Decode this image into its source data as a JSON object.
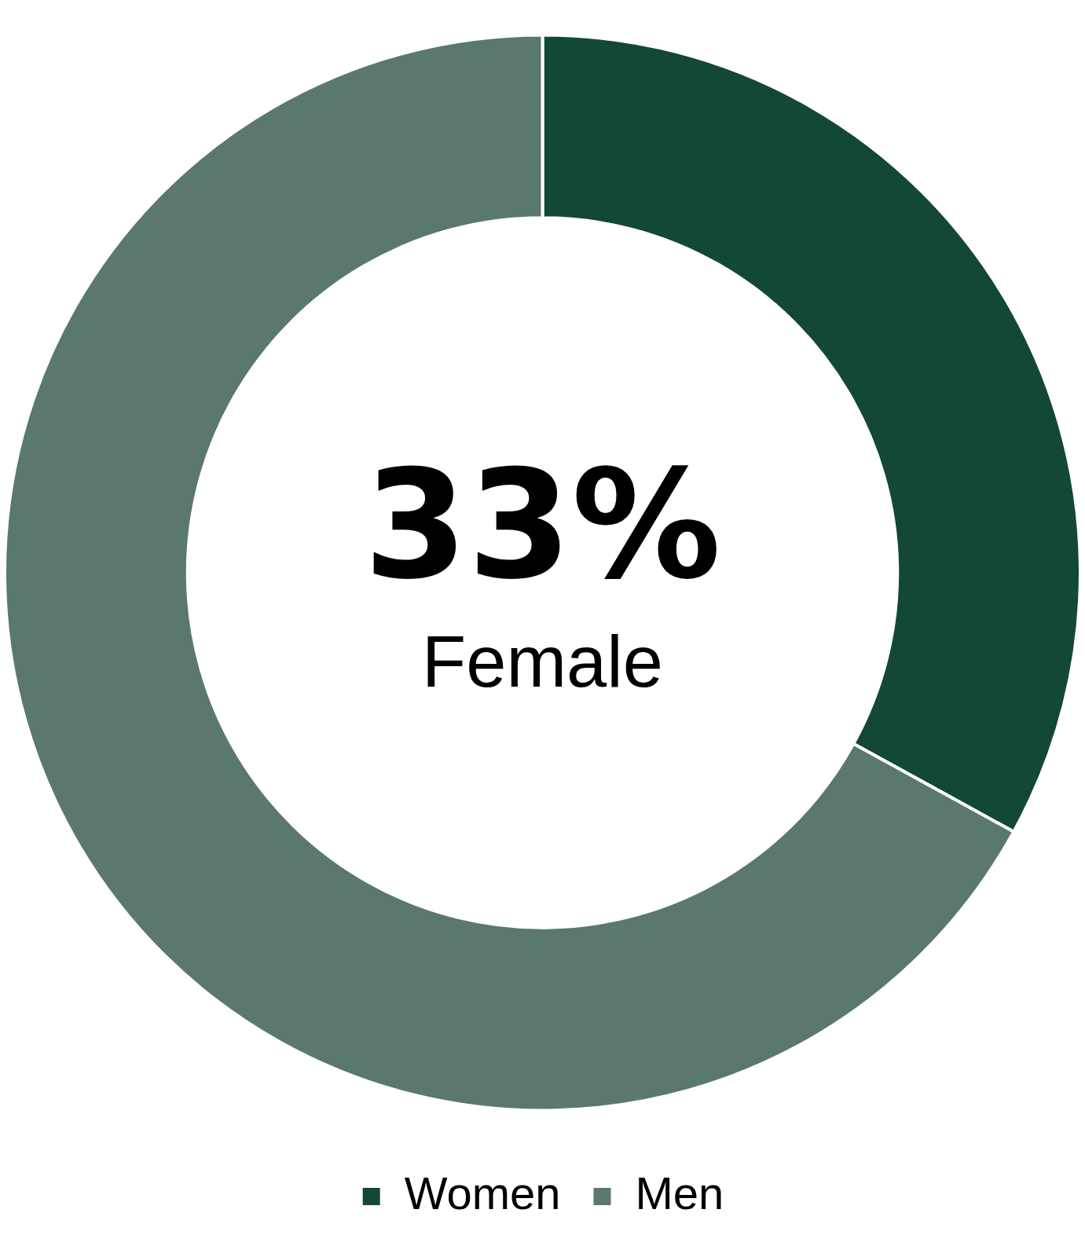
{
  "chart_data": {
    "type": "donut",
    "categories": [
      "Women",
      "Men"
    ],
    "values": [
      33,
      67
    ],
    "colors": [
      "#134835",
      "#5a786f"
    ],
    "legend": "bottom",
    "annotations": [
      "33%",
      "Female"
    ]
  }
}
